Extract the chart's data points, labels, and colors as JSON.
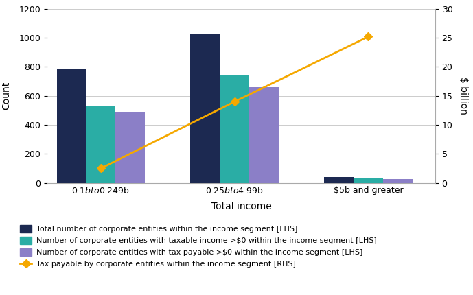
{
  "categories": [
    "$0.1b to $0.249b",
    "$0.25b to $4.99b",
    "$5b and greater"
  ],
  "total_entities": [
    785,
    1030,
    40
  ],
  "taxable_income_entities": [
    530,
    745,
    30
  ],
  "tax_payable_entities": [
    490,
    660,
    28
  ],
  "tax_payable_rhs": [
    2.5,
    14.0,
    25.2
  ],
  "bar_colors": {
    "total": "#1c2951",
    "taxable": "#2aada5",
    "tax_payable_bar": "#8b7fc7"
  },
  "line_color": "#f5a800",
  "ylabel_lhs": "Count",
  "ylabel_rhs": "$ billion",
  "xlabel": "Total income",
  "ylim_lhs": [
    0,
    1200
  ],
  "ylim_rhs": [
    0,
    30
  ],
  "yticks_lhs": [
    0,
    200,
    400,
    600,
    800,
    1000,
    1200
  ],
  "yticks_rhs": [
    0,
    5,
    10,
    15,
    20,
    25,
    30
  ],
  "legend_labels": [
    "Total number of corporate entities within the income segment [LHS]",
    "Number of corporate entities with taxable income >$0 within the income segment [LHS]",
    "Number of corporate entities with tax payable >$0 within the income segment [LHS]",
    "Tax payable by corporate entities within the income segment [RHS]"
  ],
  "background_color": "#ffffff",
  "grid_color": "#cccccc",
  "bar_width": 0.22,
  "group_positions": [
    0.5,
    1.5,
    2.5
  ]
}
